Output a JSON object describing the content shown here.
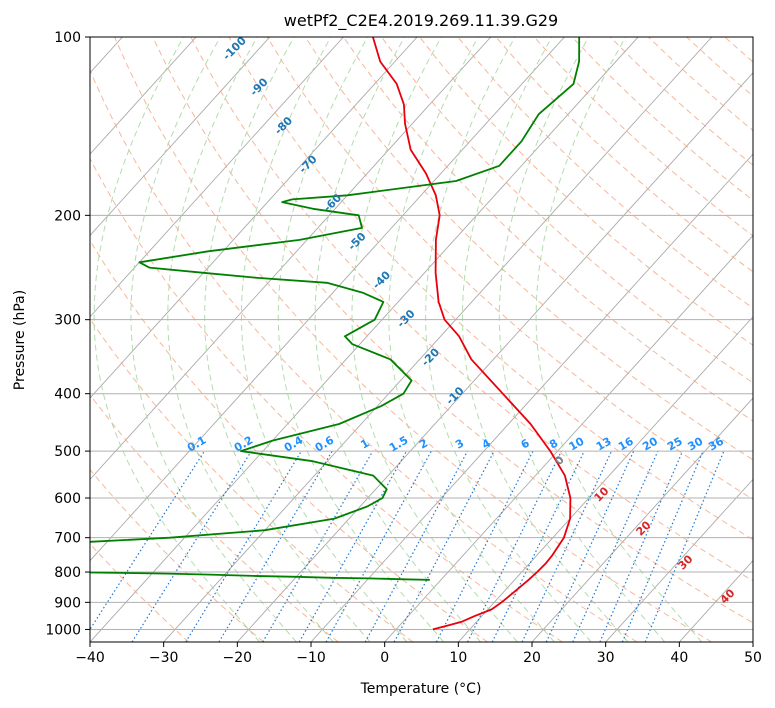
{
  "chart_data": {
    "type": "line",
    "title": "wetPf2_C2E4.2019.269.11.39.G29",
    "xlabel": "Temperature (°C)",
    "ylabel": "Pressure (hPa)",
    "xlim": [
      -40,
      50
    ],
    "ylim": [
      1050,
      100
    ],
    "y_scale": "log",
    "grid": true,
    "xticks": [
      -40,
      -30,
      -20,
      -10,
      0,
      10,
      20,
      30,
      40,
      50
    ],
    "xtick_labels": [
      "−40",
      "−30",
      "−20",
      "−10",
      "0",
      "10",
      "20",
      "30",
      "40",
      "50"
    ],
    "yticks": [
      100,
      200,
      300,
      400,
      500,
      600,
      700,
      800,
      900,
      1000
    ],
    "ytick_labels": [
      "100",
      "200",
      "300",
      "400",
      "500",
      "600",
      "700",
      "800",
      "900",
      "1000"
    ],
    "colors": {
      "temperature": "#e8000b",
      "dewpoint": "#008000",
      "dry_adiabat": "#f4a582",
      "moist_adiabat": "#a6d6a0",
      "mixing_ratio": "#1f77d4",
      "isotherm": "#aaaaaa",
      "label_neg": "#1f77b4",
      "label_pos": "#d62728",
      "label_zero": "#7f7f7f",
      "mix_label": "#1e90ff"
    },
    "series": [
      {
        "key": "temperature",
        "p": [
          1000,
          985,
          970,
          950,
          925,
          900,
          875,
          850,
          825,
          800,
          775,
          750,
          700,
          650,
          600,
          550,
          500,
          450,
          400,
          350,
          320,
          300,
          280,
          250,
          220,
          200,
          185,
          170,
          155,
          140,
          130,
          120,
          110,
          100
        ],
        "t": [
          5.0,
          6.5,
          8.0,
          9.0,
          10.5,
          11.0,
          11.3,
          11.6,
          11.9,
          12.1,
          12.2,
          12.1,
          11.5,
          10.0,
          7.5,
          4.0,
          -1.0,
          -7.0,
          -14.5,
          -23.0,
          -27.5,
          -31.5,
          -34.5,
          -38.5,
          -42.5,
          -45.0,
          -48.0,
          -52.0,
          -57.0,
          -61.0,
          -63.5,
          -67.0,
          -72.0,
          -76.0
        ]
      },
      {
        "key": "dewpoint",
        "p": [
          825,
          823,
          820,
          818,
          815,
          812,
          808,
          805,
          802,
          800,
          795,
          790,
          785,
          780,
          775,
          770,
          765,
          760,
          757,
          755,
          750,
          740,
          730,
          720,
          700,
          680,
          650,
          620,
          600,
          580,
          550,
          520,
          500,
          480,
          450,
          420,
          400,
          380,
          350,
          330,
          320,
          300,
          280,
          270,
          260,
          255,
          250,
          245,
          240,
          230,
          220,
          210,
          200,
          195,
          190,
          188,
          185,
          175,
          165,
          150,
          135,
          120,
          110,
          100
        ],
        "t": [
          -1.5,
          -5.0,
          -10.0,
          -15.0,
          -20.0,
          -26.0,
          -32.0,
          -38.0,
          -46.0,
          -54.0,
          -63.0,
          -75.0,
          -85.0,
          -88.0,
          -84.0,
          -80.0,
          -82.0,
          -90.0,
          -100.0,
          -100.0,
          -95.0,
          -80.0,
          -70.0,
          -60.0,
          -42.0,
          -30.0,
          -22.0,
          -19.0,
          -18.0,
          -18.5,
          -22.0,
          -32.0,
          -43.0,
          -40.0,
          -33.0,
          -29.5,
          -28.0,
          -28.5,
          -34.0,
          -41.0,
          -43.0,
          -41.0,
          -42.0,
          -46.0,
          -52.0,
          -62.0,
          -70.0,
          -78.0,
          -80.0,
          -72.0,
          -61.0,
          -54.0,
          -56.0,
          -63.0,
          -68.0,
          -67.0,
          -60.0,
          -47.0,
          -43.0,
          -43.0,
          -44.0,
          -43.0,
          -45.0,
          -48.0
        ]
      }
    ],
    "dry_adiabat_labels": [
      "-100",
      "-90",
      "-80",
      "-70",
      "-60",
      "-50",
      "-40",
      "-30",
      "-20",
      "-10",
      "0",
      "10",
      "20",
      "30",
      "40"
    ],
    "mixing_ratio_labels": [
      "0.1",
      "0.2",
      "0.4",
      "0.6",
      "1",
      "1.5",
      "2",
      "3",
      "4",
      "6",
      "8",
      "10",
      "13",
      "16",
      "20",
      "25",
      "30",
      "36"
    ]
  }
}
